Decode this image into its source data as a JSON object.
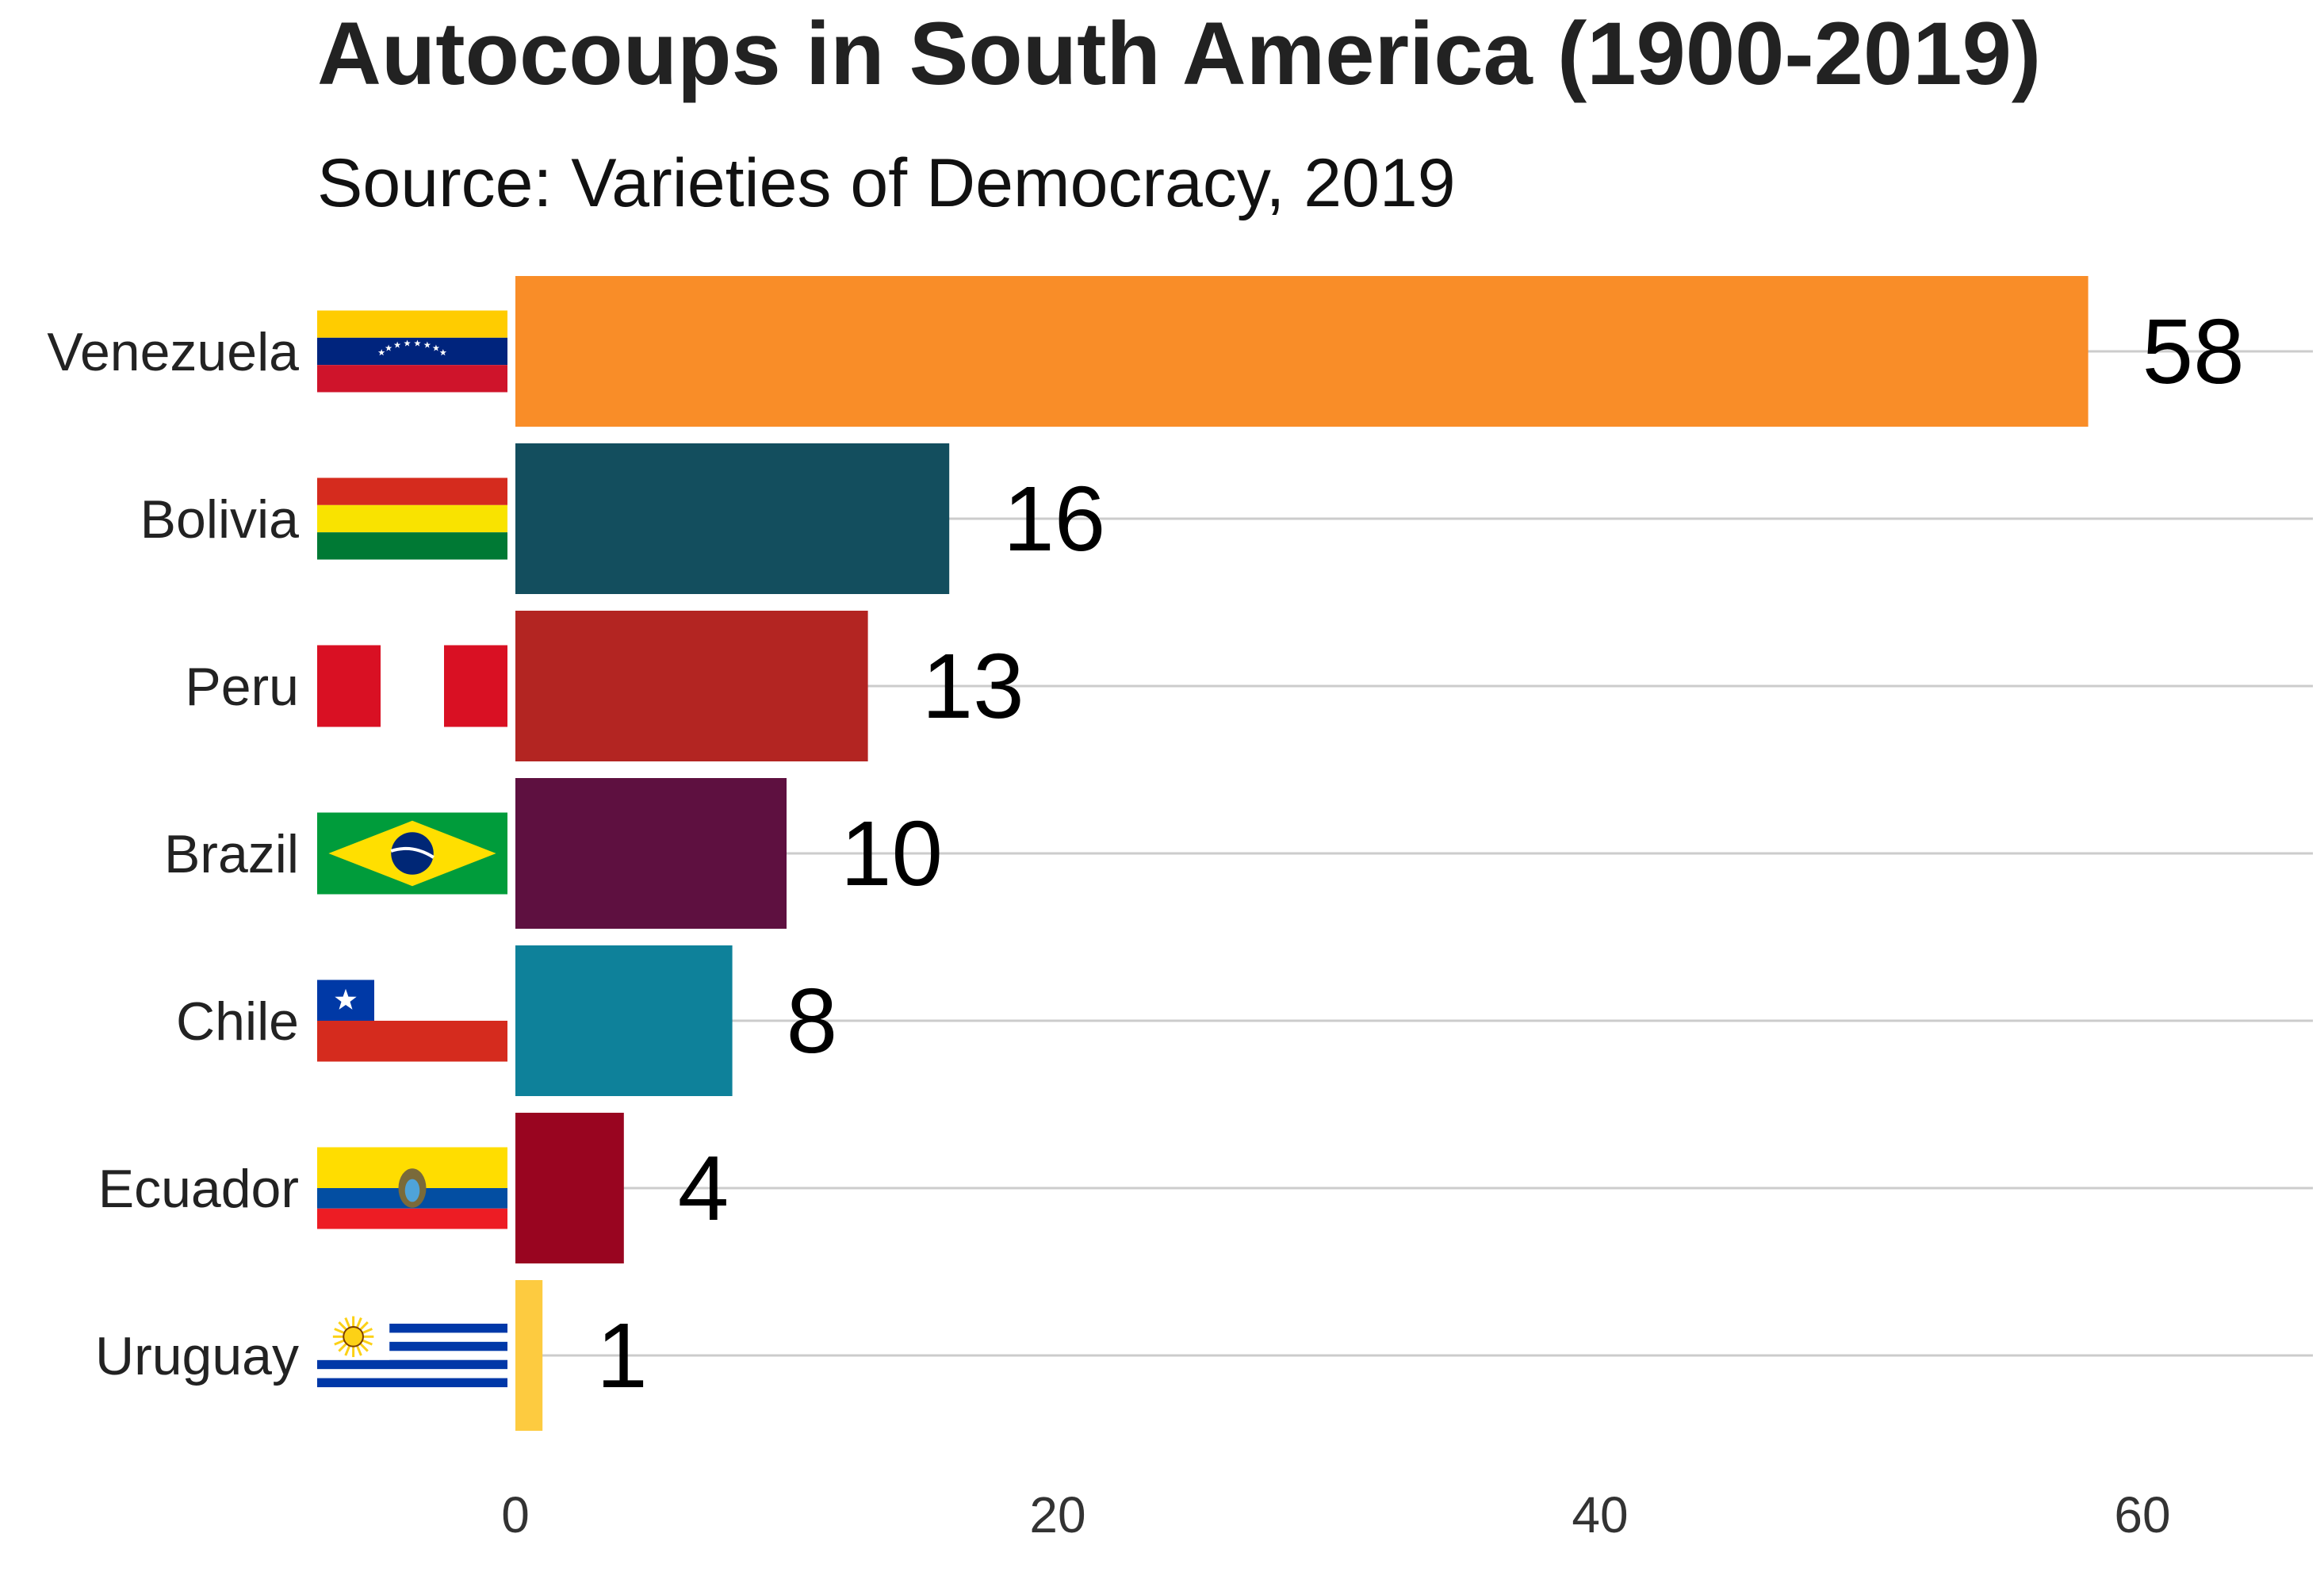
{
  "chart_data": {
    "type": "bar",
    "orientation": "horizontal",
    "title": "Autocoups in South America (1900-2019)",
    "subtitle": "Source: Varieties of Democracy, 2019",
    "categories": [
      "Venezuela",
      "Bolivia",
      "Peru",
      "Brazil",
      "Chile",
      "Ecuador",
      "Uruguay"
    ],
    "values": [
      58,
      16,
      13,
      10,
      8,
      4,
      1
    ],
    "value_labels": [
      "58",
      "16",
      "13",
      "10",
      "8",
      "4",
      "1"
    ],
    "colors": [
      "#F98D28",
      "#134E5E",
      "#B32522",
      "#5E1040",
      "#0E819A",
      "#990520",
      "#FDCB40"
    ],
    "xlim": [
      0,
      65
    ],
    "xticks": [
      0,
      20,
      40,
      60
    ],
    "xtick_labels": [
      "0",
      "20",
      "40",
      "60"
    ],
    "flags": [
      "venezuela-flag",
      "bolivia-flag",
      "peru-flag",
      "brazil-flag",
      "chile-flag",
      "ecuador-flag",
      "uruguay-flag"
    ],
    "xlabel": "",
    "ylabel": "",
    "legend": "none",
    "grid": true
  }
}
